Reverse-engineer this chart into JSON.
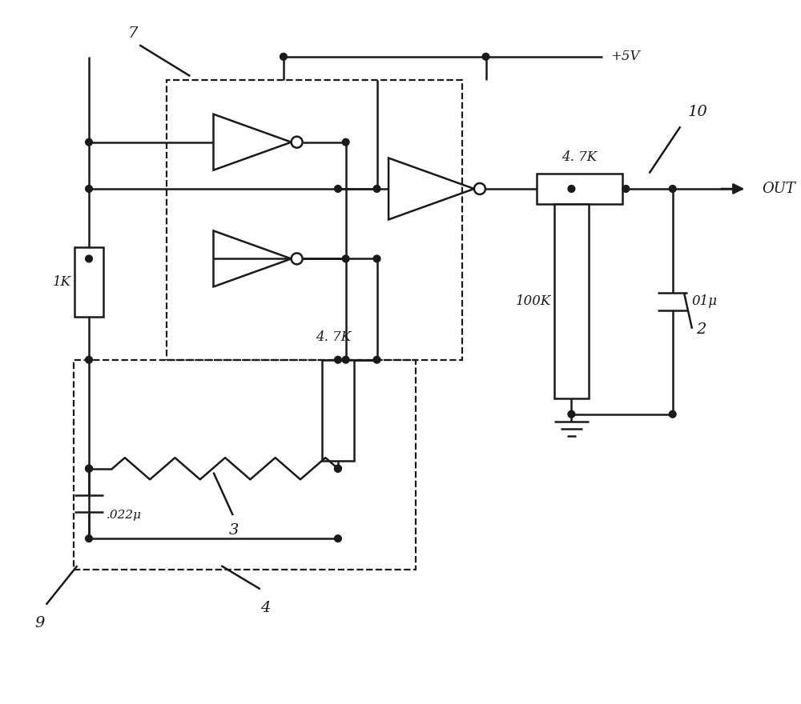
{
  "bg_color": "#ffffff",
  "lc": "#1a1a1a",
  "lw": 1.8,
  "dlw": 1.6,
  "figsize": [
    10.0,
    8.8
  ],
  "dpi": 100,
  "xlim": [
    0,
    100
  ],
  "ylim": [
    0,
    88
  ]
}
